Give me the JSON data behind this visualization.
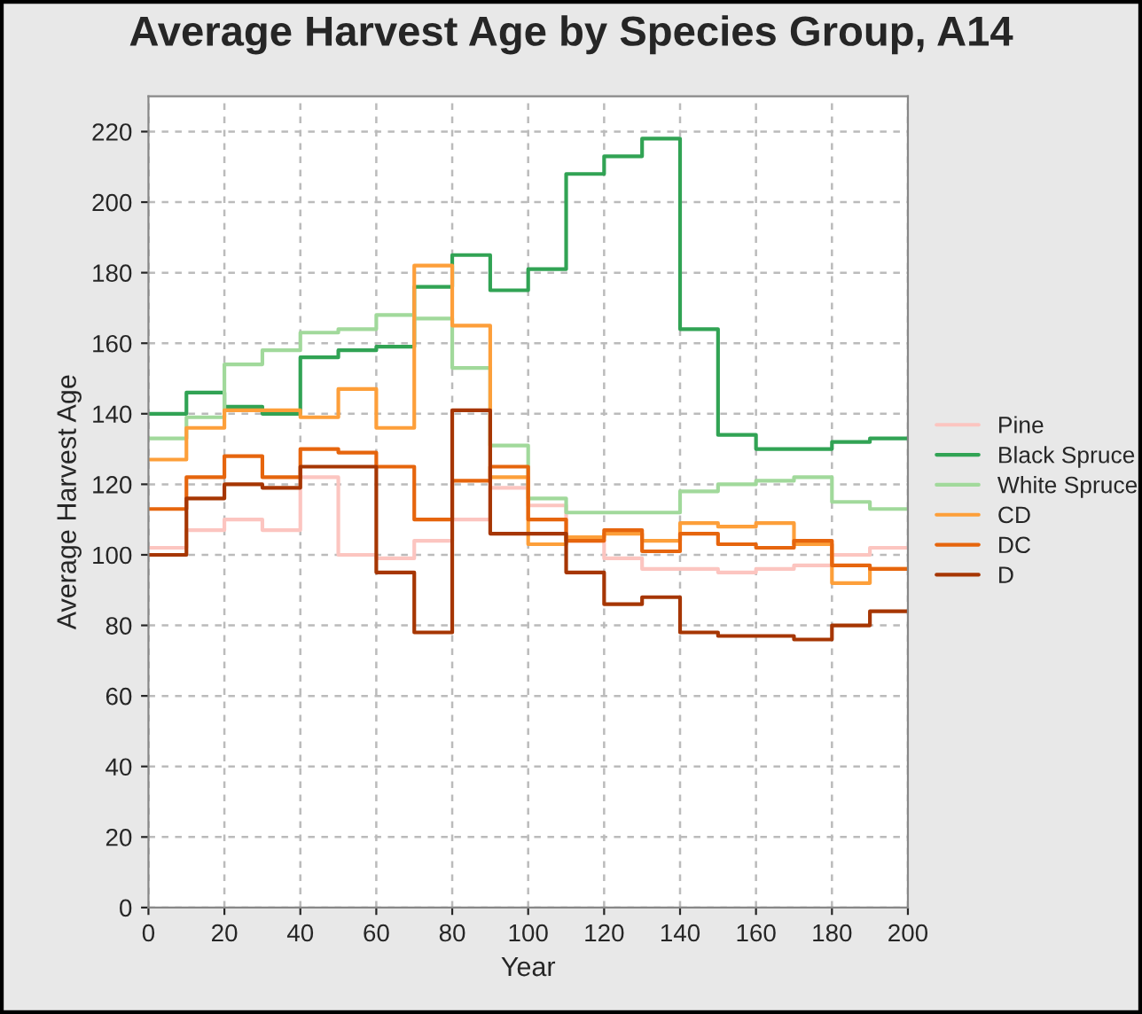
{
  "chart_data": {
    "type": "step",
    "title": "Average Harvest Age by Species Group, A14",
    "xlabel": "Year",
    "ylabel": "Average Harvest Age",
    "x": [
      0,
      10,
      20,
      30,
      40,
      50,
      60,
      70,
      80,
      90,
      100,
      110,
      120,
      130,
      140,
      150,
      160,
      170,
      180,
      190,
      200
    ],
    "series": [
      {
        "name": "Pine",
        "color": "#fcc5c0",
        "values": [
          102,
          107,
          110,
          107,
          122,
          100,
          99,
          104,
          110,
          119,
          114,
          104,
          99,
          96,
          96,
          95,
          96,
          97,
          100,
          102,
          102
        ]
      },
      {
        "name": "Black Spruce",
        "color": "#31a354",
        "values": [
          140,
          146,
          142,
          140,
          156,
          158,
          159,
          176,
          185,
          175,
          181,
          208,
          213,
          218,
          164,
          134,
          130,
          130,
          132,
          133,
          133
        ]
      },
      {
        "name": "White Spruce",
        "color": "#a1d99b",
        "values": [
          133,
          139,
          154,
          158,
          163,
          164,
          168,
          167,
          153,
          131,
          116,
          112,
          112,
          112,
          118,
          120,
          121,
          122,
          115,
          113,
          113
        ]
      },
      {
        "name": "CD",
        "color": "#fd9f3a",
        "values": [
          127,
          136,
          141,
          141,
          139,
          147,
          136,
          182,
          165,
          122,
          103,
          105,
          106,
          104,
          109,
          108,
          109,
          103,
          92,
          96,
          96
        ]
      },
      {
        "name": "DC",
        "color": "#e6650d",
        "values": [
          113,
          122,
          128,
          122,
          130,
          129,
          125,
          110,
          121,
          125,
          110,
          104,
          107,
          101,
          106,
          103,
          102,
          104,
          97,
          96,
          96
        ]
      },
      {
        "name": "D",
        "color": "#a63603",
        "values": [
          100,
          116,
          120,
          119,
          125,
          125,
          95,
          78,
          141,
          106,
          106,
          95,
          86,
          88,
          78,
          77,
          77,
          76,
          80,
          84,
          84
        ]
      }
    ],
    "xlim": [
      0,
      200
    ],
    "ylim": [
      0,
      230
    ],
    "xticks": [
      0,
      20,
      40,
      60,
      80,
      100,
      120,
      140,
      160,
      180,
      200
    ],
    "yticks": [
      0,
      20,
      40,
      60,
      80,
      100,
      120,
      140,
      160,
      180,
      200,
      220
    ],
    "grid": true,
    "legend": "right"
  }
}
